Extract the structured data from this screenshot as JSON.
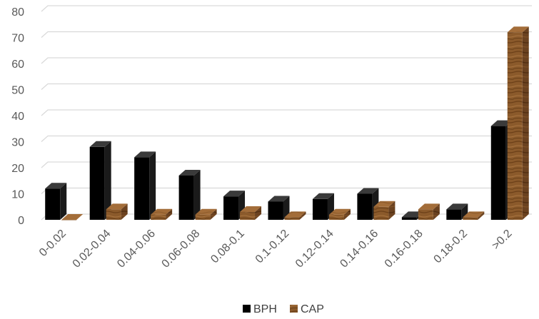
{
  "chart_data": {
    "type": "bar",
    "categories": [
      "0-0.02",
      "0.02-0.04",
      "0.04-0.06",
      "0.06-0.08",
      "0.08-0.1",
      "0.1-0.12",
      "0.12-0.14",
      "0.14-0.16",
      "0.16-0.18",
      "0.18-0.2",
      ">0.2"
    ],
    "series": [
      {
        "name": "BPH",
        "values": [
          12,
          28,
          24,
          17,
          9,
          7,
          8,
          10,
          1,
          4,
          36
        ],
        "color": "#000000"
      },
      {
        "name": "CAP",
        "values": [
          0,
          4,
          2,
          2,
          3,
          1,
          2,
          5,
          4,
          1,
          72
        ],
        "color": "#8B5A2B"
      }
    ],
    "yticks": [
      0,
      10,
      20,
      30,
      40,
      50,
      60,
      70,
      80
    ],
    "ylim": [
      0,
      80
    ],
    "grid": true,
    "legend": "bottom-center",
    "style": "3d-column"
  }
}
